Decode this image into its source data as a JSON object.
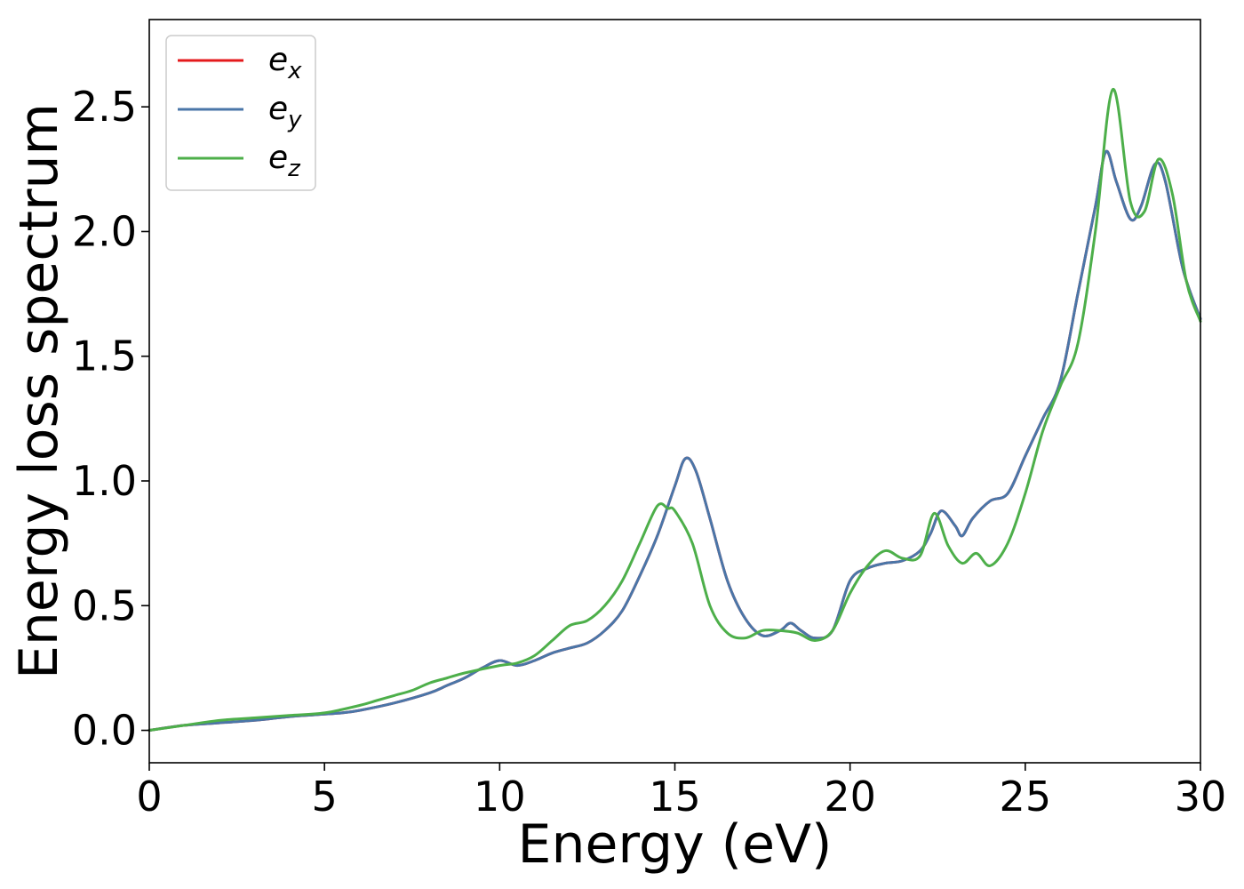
{
  "chart_data": {
    "type": "line",
    "title": "",
    "xlabel": "Energy (eV)",
    "ylabel": "Energy loss spectrum",
    "xlim": [
      0,
      30
    ],
    "ylim": [
      -0.13,
      2.85
    ],
    "xticks": [
      0,
      5,
      10,
      15,
      20,
      25,
      30
    ],
    "xtick_labels": [
      "0",
      "5",
      "10",
      "15",
      "20",
      "25",
      "30"
    ],
    "yticks": [
      0.0,
      0.5,
      1.0,
      1.5,
      2.0,
      2.5
    ],
    "ytick_labels": [
      "0.0",
      "0.5",
      "1.0",
      "1.5",
      "2.0",
      "2.5"
    ],
    "grid": false,
    "legend_position": "top-left",
    "series": [
      {
        "name": "ex",
        "legend_base": "e",
        "legend_sub": "x",
        "color": "#e41a1c",
        "points": [
          [
            0,
            0
          ],
          [
            1,
            0.02
          ],
          [
            2,
            0.03
          ],
          [
            3,
            0.04
          ],
          [
            4,
            0.055
          ],
          [
            5,
            0.065
          ],
          [
            5.5,
            0.07
          ],
          [
            6,
            0.08
          ],
          [
            7,
            0.11
          ],
          [
            8,
            0.15
          ],
          [
            8.5,
            0.18
          ],
          [
            9,
            0.21
          ],
          [
            9.5,
            0.25
          ],
          [
            10,
            0.28
          ],
          [
            10.5,
            0.26
          ],
          [
            11,
            0.28
          ],
          [
            11.5,
            0.31
          ],
          [
            12,
            0.33
          ],
          [
            12.5,
            0.35
          ],
          [
            13,
            0.4
          ],
          [
            13.5,
            0.48
          ],
          [
            14,
            0.62
          ],
          [
            14.5,
            0.78
          ],
          [
            15,
            0.98
          ],
          [
            15.3,
            1.09
          ],
          [
            15.6,
            1.04
          ],
          [
            16,
            0.85
          ],
          [
            16.5,
            0.6
          ],
          [
            17,
            0.45
          ],
          [
            17.5,
            0.38
          ],
          [
            18,
            0.4
          ],
          [
            18.3,
            0.43
          ],
          [
            18.6,
            0.4
          ],
          [
            19,
            0.37
          ],
          [
            19.5,
            0.4
          ],
          [
            20,
            0.6
          ],
          [
            20.5,
            0.65
          ],
          [
            21,
            0.67
          ],
          [
            21.5,
            0.68
          ],
          [
            22,
            0.72
          ],
          [
            22.3,
            0.79
          ],
          [
            22.6,
            0.88
          ],
          [
            23,
            0.82
          ],
          [
            23.2,
            0.78
          ],
          [
            23.5,
            0.85
          ],
          [
            24,
            0.92
          ],
          [
            24.5,
            0.95
          ],
          [
            25,
            1.1
          ],
          [
            25.5,
            1.25
          ],
          [
            26,
            1.4
          ],
          [
            26.5,
            1.75
          ],
          [
            27,
            2.1
          ],
          [
            27.3,
            2.32
          ],
          [
            27.6,
            2.2
          ],
          [
            28,
            2.05
          ],
          [
            28.3,
            2.1
          ],
          [
            28.7,
            2.27
          ],
          [
            29,
            2.2
          ],
          [
            29.5,
            1.85
          ],
          [
            30,
            1.65
          ]
        ]
      },
      {
        "name": "ey",
        "legend_base": "e",
        "legend_sub": "y",
        "color": "#4a76a8",
        "points": [
          [
            0,
            0
          ],
          [
            1,
            0.02
          ],
          [
            2,
            0.03
          ],
          [
            3,
            0.04
          ],
          [
            4,
            0.055
          ],
          [
            5,
            0.065
          ],
          [
            5.5,
            0.07
          ],
          [
            6,
            0.08
          ],
          [
            7,
            0.11
          ],
          [
            8,
            0.15
          ],
          [
            8.5,
            0.18
          ],
          [
            9,
            0.21
          ],
          [
            9.5,
            0.25
          ],
          [
            10,
            0.28
          ],
          [
            10.5,
            0.26
          ],
          [
            11,
            0.28
          ],
          [
            11.5,
            0.31
          ],
          [
            12,
            0.33
          ],
          [
            12.5,
            0.35
          ],
          [
            13,
            0.4
          ],
          [
            13.5,
            0.48
          ],
          [
            14,
            0.62
          ],
          [
            14.5,
            0.78
          ],
          [
            15,
            0.98
          ],
          [
            15.3,
            1.09
          ],
          [
            15.6,
            1.04
          ],
          [
            16,
            0.85
          ],
          [
            16.5,
            0.6
          ],
          [
            17,
            0.45
          ],
          [
            17.5,
            0.38
          ],
          [
            18,
            0.4
          ],
          [
            18.3,
            0.43
          ],
          [
            18.6,
            0.4
          ],
          [
            19,
            0.37
          ],
          [
            19.5,
            0.4
          ],
          [
            20,
            0.6
          ],
          [
            20.5,
            0.65
          ],
          [
            21,
            0.67
          ],
          [
            21.5,
            0.68
          ],
          [
            22,
            0.72
          ],
          [
            22.3,
            0.79
          ],
          [
            22.6,
            0.88
          ],
          [
            23,
            0.82
          ],
          [
            23.2,
            0.78
          ],
          [
            23.5,
            0.85
          ],
          [
            24,
            0.92
          ],
          [
            24.5,
            0.95
          ],
          [
            25,
            1.1
          ],
          [
            25.5,
            1.25
          ],
          [
            26,
            1.4
          ],
          [
            26.5,
            1.75
          ],
          [
            27,
            2.1
          ],
          [
            27.3,
            2.32
          ],
          [
            27.6,
            2.2
          ],
          [
            28,
            2.05
          ],
          [
            28.3,
            2.1
          ],
          [
            28.7,
            2.27
          ],
          [
            29,
            2.2
          ],
          [
            29.5,
            1.85
          ],
          [
            30,
            1.65
          ]
        ]
      },
      {
        "name": "ez",
        "legend_base": "e",
        "legend_sub": "z",
        "color": "#4daf4a",
        "points": [
          [
            0,
            0
          ],
          [
            1,
            0.02
          ],
          [
            2,
            0.04
          ],
          [
            3,
            0.05
          ],
          [
            4,
            0.06
          ],
          [
            5,
            0.07
          ],
          [
            6,
            0.1
          ],
          [
            6.5,
            0.12
          ],
          [
            7,
            0.14
          ],
          [
            7.5,
            0.16
          ],
          [
            8,
            0.19
          ],
          [
            8.5,
            0.21
          ],
          [
            9,
            0.23
          ],
          [
            10,
            0.26
          ],
          [
            10.5,
            0.27
          ],
          [
            11,
            0.3
          ],
          [
            11.5,
            0.36
          ],
          [
            12,
            0.42
          ],
          [
            12.5,
            0.44
          ],
          [
            13,
            0.5
          ],
          [
            13.5,
            0.6
          ],
          [
            14,
            0.75
          ],
          [
            14.5,
            0.9
          ],
          [
            14.8,
            0.89
          ],
          [
            15,
            0.88
          ],
          [
            15.5,
            0.75
          ],
          [
            16,
            0.5
          ],
          [
            16.5,
            0.39
          ],
          [
            17,
            0.37
          ],
          [
            17.5,
            0.4
          ],
          [
            18,
            0.4
          ],
          [
            18.5,
            0.39
          ],
          [
            19,
            0.36
          ],
          [
            19.5,
            0.4
          ],
          [
            20,
            0.55
          ],
          [
            20.5,
            0.66
          ],
          [
            21,
            0.72
          ],
          [
            21.5,
            0.69
          ],
          [
            22,
            0.7
          ],
          [
            22.4,
            0.87
          ],
          [
            22.8,
            0.74
          ],
          [
            23.2,
            0.67
          ],
          [
            23.6,
            0.71
          ],
          [
            24,
            0.66
          ],
          [
            24.5,
            0.75
          ],
          [
            25,
            0.95
          ],
          [
            25.5,
            1.2
          ],
          [
            26,
            1.38
          ],
          [
            26.5,
            1.55
          ],
          [
            27,
            2.0
          ],
          [
            27.5,
            2.57
          ],
          [
            28,
            2.12
          ],
          [
            28.4,
            2.08
          ],
          [
            28.8,
            2.29
          ],
          [
            29.2,
            2.15
          ],
          [
            29.6,
            1.8
          ],
          [
            30,
            1.64
          ]
        ]
      }
    ]
  }
}
